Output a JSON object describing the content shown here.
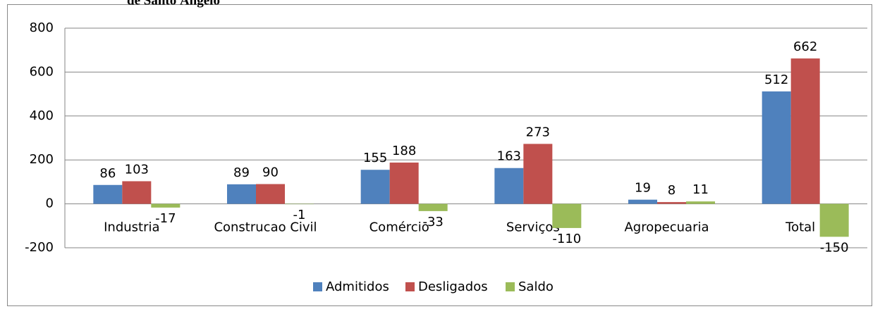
{
  "chart_data": {
    "type": "bar",
    "title": "de Santo Ângelo",
    "categories": [
      "Industria",
      "Construcao Civil",
      "Comércio",
      "Serviços",
      "Agropecuaria",
      "Total"
    ],
    "series": [
      {
        "name": "Admitidos",
        "color": "#4f81bd",
        "values": [
          86,
          89,
          155,
          163,
          19,
          512
        ]
      },
      {
        "name": "Desligados",
        "color": "#c0504d",
        "values": [
          103,
          90,
          188,
          273,
          8,
          662
        ]
      },
      {
        "name": "Saldo",
        "color": "#9bbb59",
        "values": [
          -17,
          -1,
          -33,
          -110,
          11,
          -150
        ]
      }
    ],
    "ylim": [
      -200,
      800
    ],
    "yticks": [
      -200,
      0,
      200,
      400,
      600,
      800
    ],
    "grid": true,
    "legend": "bottom"
  }
}
